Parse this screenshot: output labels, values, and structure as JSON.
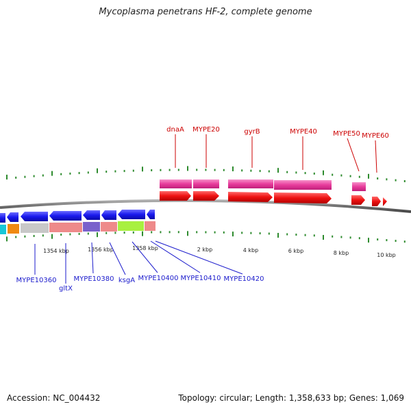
{
  "title": "Mycoplasma penetrans HF-2, complete genome",
  "footer": {
    "accession": "Accession: NC_004432",
    "topology": "Topology: circular; Length: 1,358,633 bp; Genes: 1,069"
  },
  "scale_labels": [
    "1354 kbp",
    "1356 kbp",
    "1358 kbp",
    "2 kbp",
    "4 kbp",
    "6 kbp",
    "8 kbp",
    "10 kbp"
  ],
  "forward_labels": [
    "dnaA",
    "MYPE20",
    "gyrB",
    "MYPE40",
    "MYPE50",
    "MYPE60"
  ],
  "reverse_labels": [
    "MYPE10360",
    "gltX",
    "MYPE10380",
    "ksgA",
    "MYPE10400",
    "MYPE10410",
    "MYPE10420"
  ],
  "colors": {
    "forward_label": "#cc0000",
    "reverse_label": "#1a1acc",
    "forward_gene": "#ee1111",
    "reverse_gene": "#1a1aee",
    "forward_band": "#e83c9c",
    "backbone": "#7a7a7a",
    "tick": "#2e8b2e"
  }
}
